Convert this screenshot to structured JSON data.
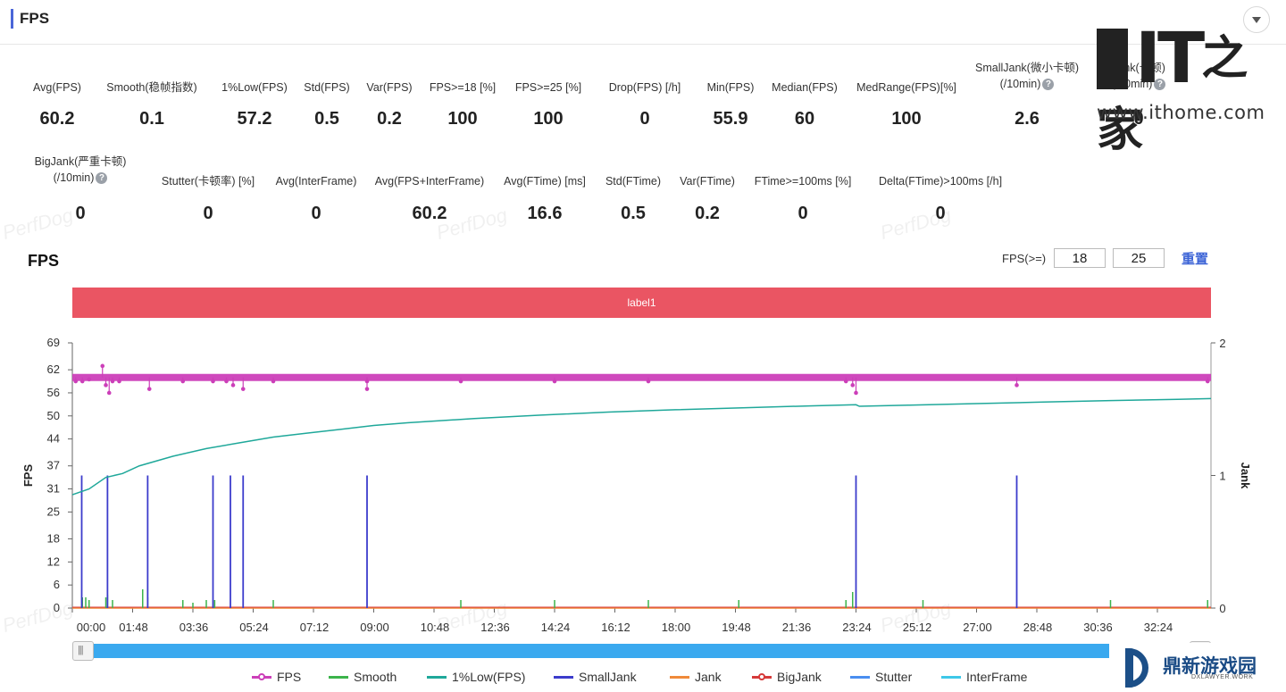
{
  "header": {
    "title": "FPS"
  },
  "stats_row1": [
    {
      "label": "Avg(FPS)",
      "value": "60.2",
      "help": false
    },
    {
      "label": "Smooth(稳帧指数)",
      "value": "0.1",
      "help": true
    },
    {
      "label": "1%Low(FPS)",
      "value": "57.2",
      "help": false
    },
    {
      "label": "Std(FPS)",
      "value": "0.5",
      "help": false
    },
    {
      "label": "Var(FPS)",
      "value": "0.2",
      "help": false
    },
    {
      "label": "FPS>=18 [%]",
      "value": "100",
      "help": false
    },
    {
      "label": "FPS>=25 [%]",
      "value": "100",
      "help": false
    },
    {
      "label": "Drop(FPS) [/h]",
      "value": "0",
      "help": true
    },
    {
      "label": "Min(FPS)",
      "value": "55.9",
      "help": false
    },
    {
      "label": "Median(FPS)",
      "value": "60",
      "help": false
    },
    {
      "label": "MedRange(FPS)[%]",
      "value": "100",
      "help": false
    },
    {
      "label": "SmallJank(微小卡顿)",
      "label2": "(/10min)",
      "value": "2.6",
      "help": true
    },
    {
      "label": "Jank(卡顿)",
      "label2": "(/10min)",
      "value": "0",
      "help": true
    }
  ],
  "stats_row2": [
    {
      "label": "BigJank(严重卡顿)",
      "label2": "(/10min)",
      "value": "0",
      "help": true
    },
    {
      "label": "Stutter(卡顿率) [%]",
      "value": "0",
      "help": false
    },
    {
      "label": "Avg(InterFrame)",
      "value": "0",
      "help": false
    },
    {
      "label": "Avg(FPS+InterFrame)",
      "value": "60.2",
      "help": false
    },
    {
      "label": "Avg(FTime) [ms]",
      "value": "16.6",
      "help": false
    },
    {
      "label": "Std(FTime)",
      "value": "0.5",
      "help": false
    },
    {
      "label": "Var(FTime)",
      "value": "0.2",
      "help": false
    },
    {
      "label": "FTime>=100ms [%]",
      "value": "0",
      "help": false
    },
    {
      "label": "Delta(FTime)>100ms [/h]",
      "value": "0",
      "help": true
    }
  ],
  "watermark_text": "PerfDog",
  "chart_title": "FPS",
  "fps_filter": {
    "label": "FPS(>=)",
    "value1": "18",
    "value2": "25",
    "reset_label": "重置"
  },
  "label_band": "label1",
  "logo_it": {
    "letters": "IT",
    "chinese": "之家",
    "url": "www.ithome.com"
  },
  "logo_dx": {
    "chinese": "鼎新游戏园",
    "english": "DXLAWYER.WORK"
  },
  "chart_data": {
    "type": "line",
    "title": "FPS",
    "ylabel": "FPS",
    "y2label": "Jank",
    "ylim": [
      0,
      69
    ],
    "y2lim": [
      0,
      2
    ],
    "yticks": [
      0,
      6,
      12,
      18,
      25,
      31,
      37,
      44,
      50,
      56,
      62,
      69
    ],
    "y2ticks": [
      0,
      1,
      2
    ],
    "xticks": [
      "00:00",
      "01:48",
      "03:36",
      "05:24",
      "07:12",
      "09:00",
      "10:48",
      "12:36",
      "14:24",
      "16:12",
      "18:00",
      "19:48",
      "21:36",
      "23:24",
      "25:12",
      "27:00",
      "28:48",
      "30:36",
      "32:24"
    ],
    "x_range_min": [
      0,
      34
    ],
    "legend": [
      "FPS",
      "Smooth",
      "1%Low(FPS)",
      "SmallJank",
      "Jank",
      "BigJank",
      "Stutter",
      "InterFrame"
    ],
    "colors": {
      "FPS": "#cc3fb9",
      "Smooth": "#3cb44b",
      "1%Low(FPS)": "#1fa89a",
      "SmallJank": "#3c3ccc",
      "Jank": "#f08a3a",
      "BigJank": "#d63a3a",
      "Stutter": "#4a8ef0",
      "InterFrame": "#3ec8e8"
    },
    "series": [
      {
        "name": "FPS",
        "baseline": 60,
        "dips": [
          [
            0.1,
            59
          ],
          [
            0.3,
            59
          ],
          [
            0.5,
            59.5
          ],
          [
            0.9,
            63
          ],
          [
            1.0,
            58
          ],
          [
            1.1,
            56
          ],
          [
            1.2,
            59
          ],
          [
            1.4,
            59
          ],
          [
            2.3,
            57
          ],
          [
            3.3,
            59
          ],
          [
            4.2,
            59
          ],
          [
            4.6,
            59
          ],
          [
            4.8,
            58
          ],
          [
            5.1,
            57
          ],
          [
            6.0,
            59
          ],
          [
            8.8,
            59
          ],
          [
            8.8,
            57
          ],
          [
            11.6,
            59
          ],
          [
            14.4,
            59
          ],
          [
            17.2,
            59
          ],
          [
            23.1,
            59
          ],
          [
            23.3,
            58
          ],
          [
            23.4,
            56
          ],
          [
            28.2,
            58
          ],
          [
            33.9,
            59
          ]
        ]
      },
      {
        "name": "1%Low(FPS)",
        "points": [
          [
            0,
            29.5
          ],
          [
            0.5,
            31
          ],
          [
            1.0,
            34
          ],
          [
            1.5,
            35
          ],
          [
            2.0,
            37
          ],
          [
            3.0,
            39.5
          ],
          [
            4.0,
            41.5
          ],
          [
            5.0,
            43
          ],
          [
            6.0,
            44.5
          ],
          [
            7.0,
            45.5
          ],
          [
            8.0,
            46.5
          ],
          [
            9.0,
            47.5
          ],
          [
            10,
            48.2
          ],
          [
            12,
            49.3
          ],
          [
            14,
            50.2
          ],
          [
            16,
            51
          ],
          [
            18,
            51.6
          ],
          [
            20,
            52.1
          ],
          [
            22,
            52.6
          ],
          [
            23.4,
            52.9
          ],
          [
            23.5,
            52.5
          ],
          [
            25,
            52.8
          ],
          [
            27,
            53.2
          ],
          [
            29,
            53.6
          ],
          [
            31,
            54
          ],
          [
            33,
            54.3
          ],
          [
            34,
            54.5
          ]
        ]
      },
      {
        "name": "SmallJank",
        "spikes": [
          0.28,
          1.05,
          2.25,
          4.2,
          4.72,
          5.1,
          8.8,
          23.4,
          28.2
        ]
      },
      {
        "name": "Smooth",
        "spikes": [
          [
            0.3,
            0.2
          ],
          [
            0.4,
            0.2
          ],
          [
            0.5,
            0.15
          ],
          [
            1.0,
            0.2
          ],
          [
            1.05,
            0.25
          ],
          [
            1.2,
            0.15
          ],
          [
            2.1,
            0.35
          ],
          [
            2.25,
            0.2
          ],
          [
            3.3,
            0.15
          ],
          [
            3.6,
            0.1
          ],
          [
            4.0,
            0.15
          ],
          [
            4.25,
            0.15
          ],
          [
            6.0,
            0.15
          ],
          [
            11.6,
            0.15
          ],
          [
            14.4,
            0.15
          ],
          [
            17.2,
            0.15
          ],
          [
            19.9,
            0.15
          ],
          [
            23.1,
            0.15
          ],
          [
            23.3,
            0.3
          ],
          [
            25.4,
            0.15
          ],
          [
            31.0,
            0.15
          ],
          [
            33.9,
            0.15
          ]
        ]
      },
      {
        "name": "Jank",
        "values": "0"
      },
      {
        "name": "BigJank",
        "values": "0"
      }
    ]
  }
}
